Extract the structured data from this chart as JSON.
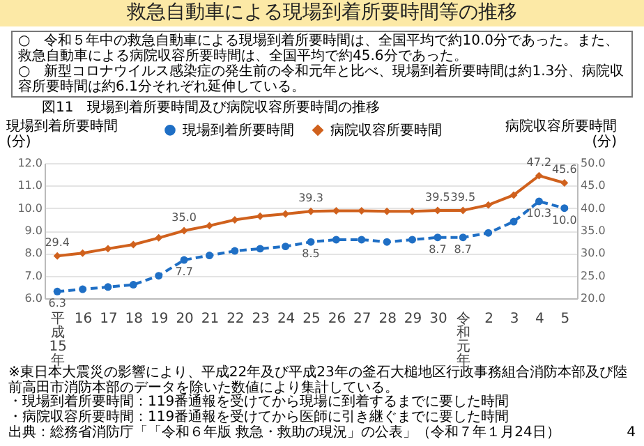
{
  "chart_data": {
    "type": "line",
    "title": "救急自動車による現場到着所要時間等の推移",
    "subtitle": "○　令和５年中の救急自動車による現場到着所要時間は、全国平均で約10.0分であった。また、救急自動車による病院収容所要時間は、全国平均で約45.6分であった。\n○　新型コロナウイルス感染症の発生前の令和元年と比べ、現場到着所要時間は約1.3分、病院収容所要時間は約6.1分それぞれ延伸している。",
    "annotations": [
      "図11　現場到着所要時間及び病院収容所要時間の推移",
      "※東日本大震災の影響により、平成22年及び平成23年の釜石大槌地区行政事務組合消防本部及び陸前高田市消防本部のデータを除いた数値により集計している。",
      "・現場到着所要時間：119番通報を受けてから現場に到着するまでに要した時間",
      "・病院収容所要時間：119番通報を受けてから医師に引き継ぐまでに要した時間",
      "出典：総務省消防庁「「令和６年版 救急・救助の現況」の公表」（令和７年１月24日）",
      "4"
    ],
    "ylabel": "現場到着所要時間\n(分)",
    "y2label": "病院収容所要時間\n(分)",
    "categories": [
      "平成15年",
      "16",
      "17",
      "18",
      "19",
      "20",
      "21",
      "22",
      "23",
      "24",
      "25",
      "26",
      "27",
      "28",
      "29",
      "30",
      "令和元年",
      "2",
      "3",
      "4",
      "5"
    ],
    "series": [
      {
        "name": "現場到着所要時間",
        "color": "#1f6fc5",
        "line_style": "dashed",
        "marker": "circle",
        "axis": "y",
        "values": [
          6.3,
          6.4,
          6.5,
          6.6,
          7.0,
          7.7,
          7.9,
          8.1,
          8.2,
          8.3,
          8.5,
          8.6,
          8.6,
          8.5,
          8.6,
          8.7,
          8.7,
          8.9,
          9.4,
          10.3,
          10.0
        ],
        "value_labels": [
          "6.3",
          null,
          null,
          null,
          null,
          "7.7",
          null,
          null,
          null,
          null,
          "8.5",
          null,
          null,
          null,
          null,
          "8.7",
          "8.7",
          null,
          null,
          "10.3",
          "10.0"
        ]
      },
      {
        "name": "病院収容所要時間",
        "color": "#d0611d",
        "line_style": "solid",
        "marker": "diamond",
        "axis": "y2",
        "values": [
          29.4,
          30.0,
          31.0,
          31.9,
          33.4,
          35.0,
          36.1,
          37.4,
          38.2,
          38.7,
          39.3,
          39.4,
          39.4,
          39.3,
          39.3,
          39.5,
          39.5,
          40.7,
          42.9,
          47.2,
          45.6
        ],
        "value_labels": [
          "29.4",
          null,
          null,
          null,
          null,
          "35.0",
          null,
          null,
          null,
          null,
          "39.3",
          null,
          null,
          null,
          null,
          "39.5",
          "39.5",
          null,
          null,
          "47.2",
          "45.6"
        ]
      }
    ],
    "ylim": [
      6,
      12
    ],
    "yticks": [
      {
        "value": 6,
        "label": "6.0"
      },
      {
        "value": 7,
        "label": "7.0"
      },
      {
        "value": 8,
        "label": "8.0"
      },
      {
        "value": 9,
        "label": "9.0"
      },
      {
        "value": 10,
        "label": "10.0"
      },
      {
        "value": 11,
        "label": "11.0"
      },
      {
        "value": 12,
        "label": "12.0"
      }
    ],
    "y2lim": [
      20,
      50
    ],
    "y2ticks": [
      {
        "value": 20,
        "label": "20.0"
      },
      {
        "value": 25,
        "label": "25.0"
      },
      {
        "value": 30,
        "label": "30.0"
      },
      {
        "value": 35,
        "label": "35.0"
      },
      {
        "value": 40,
        "label": "40.0"
      },
      {
        "value": 45,
        "label": "45.0"
      },
      {
        "value": 50,
        "label": "50.0"
      }
    ],
    "grid": "y",
    "legend": "top"
  }
}
